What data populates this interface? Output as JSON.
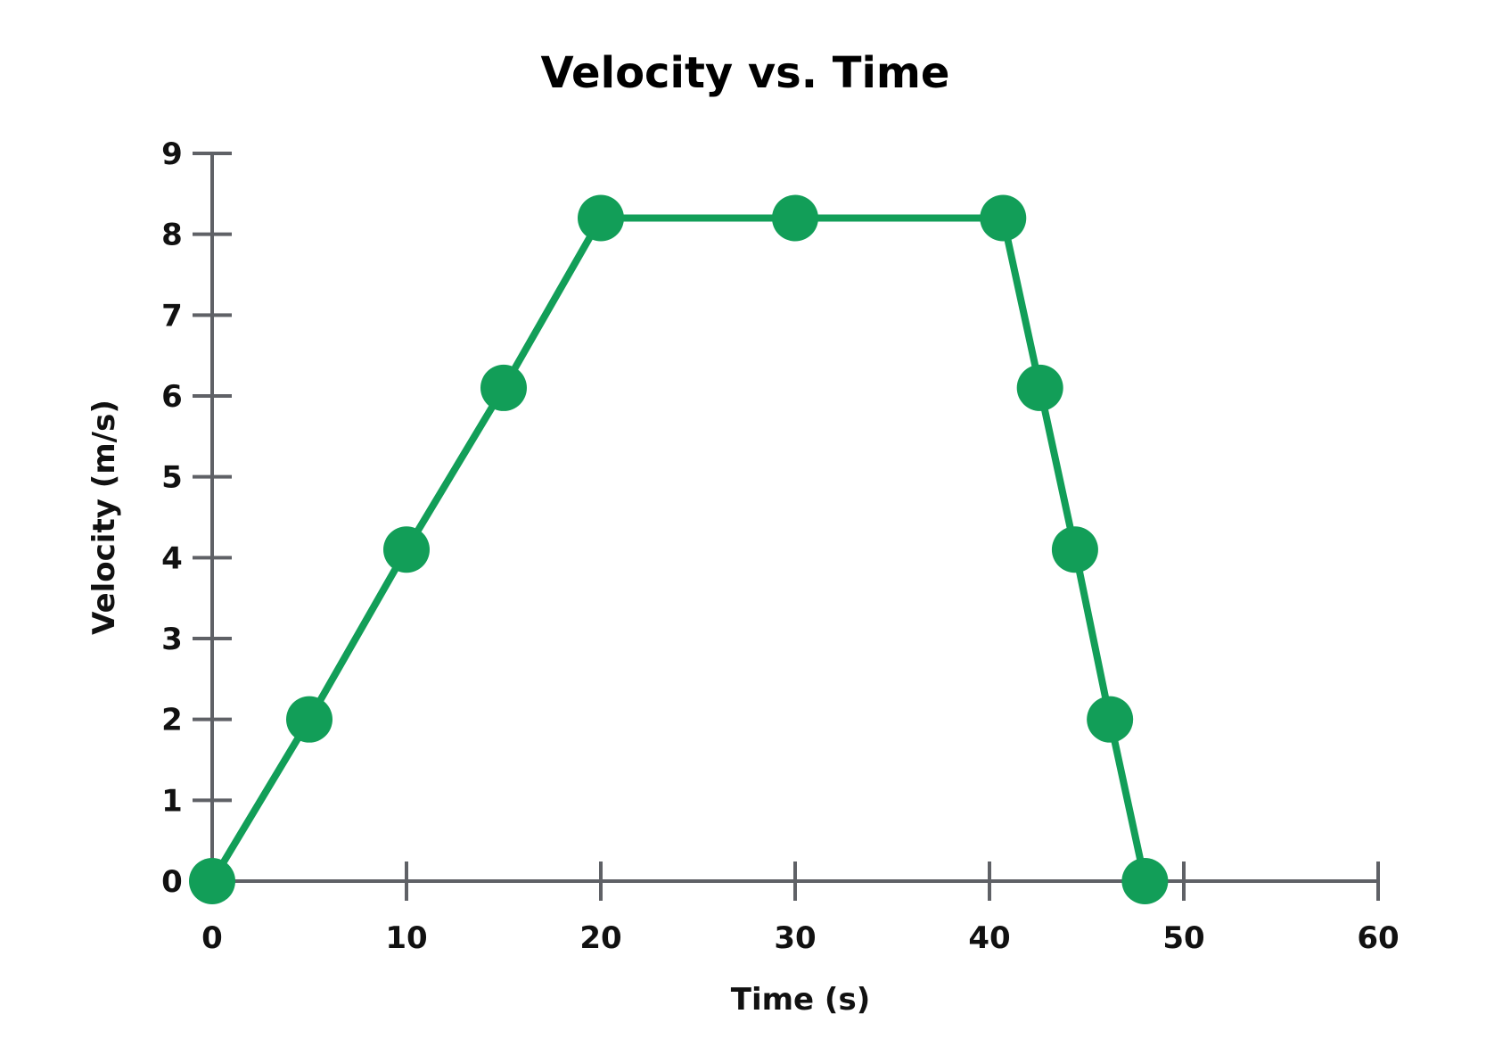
{
  "chart_data": {
    "type": "line",
    "title": "Velocity vs. Time",
    "xlabel": "Time (s)",
    "ylabel": "Velocity (m/s)",
    "xlim": [
      0,
      60
    ],
    "ylim": [
      0,
      9
    ],
    "x_ticks": [
      "0",
      "10",
      "20",
      "30",
      "40",
      "50",
      "60"
    ],
    "y_ticks": [
      "0",
      "1",
      "2",
      "3",
      "4",
      "5",
      "6",
      "7",
      "8",
      "9"
    ],
    "grid": false,
    "legend": "none",
    "series": [
      {
        "color": "#129e58",
        "markers": true,
        "x": [
          0,
          5,
          10,
          15,
          20,
          30,
          40.7,
          42.6,
          44.4,
          46.2,
          48
        ],
        "y": [
          0,
          2,
          4.1,
          6.1,
          8.2,
          8.2,
          8.2,
          6.1,
          4.1,
          2,
          0
        ]
      }
    ],
    "axis_color": "#5f6166"
  }
}
